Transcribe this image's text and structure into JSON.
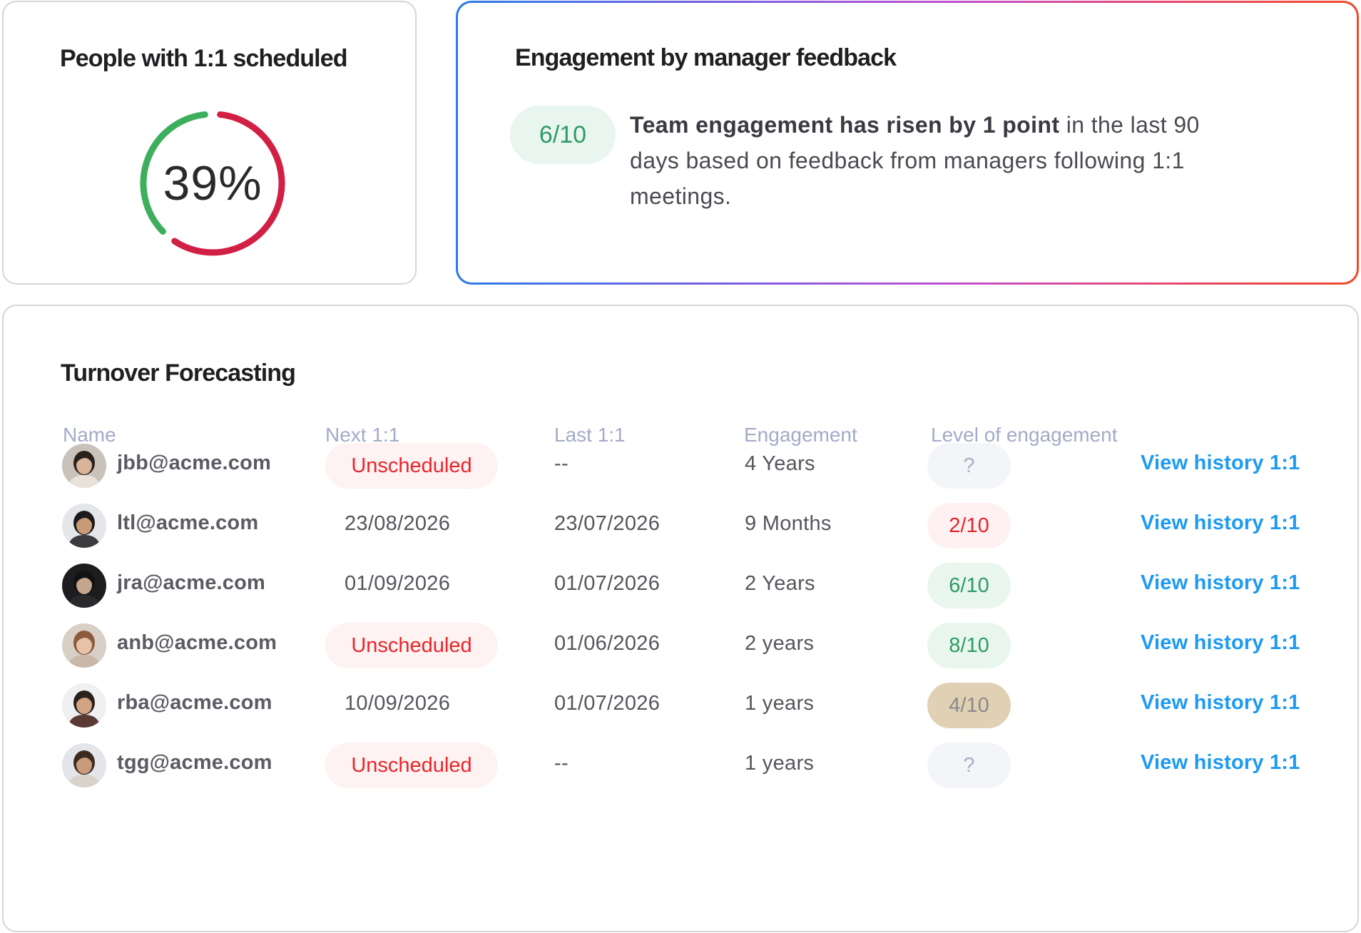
{
  "scheduled": {
    "title": "People with 1:1 scheduled",
    "percent_label": "39%",
    "percent": 39,
    "colors": {
      "scheduled": "#3dae5c",
      "unscheduled": "#d21f44"
    }
  },
  "engagement": {
    "title": "Engagement by manager feedback",
    "score": "6/10",
    "text_bold": "Team engagement has risen by 1 point",
    "text_rest": " in the last 90 days based on feedback from managers following 1:1 meetings."
  },
  "turnover": {
    "title": "Turnover Forecasting",
    "columns": {
      "name": "Name",
      "next": "Next 1:1",
      "last": "Last 1:1",
      "engagement": "Engagement",
      "level": "Level of engagement"
    },
    "rows": [
      {
        "email": "jbb@acme.com",
        "next": "Unscheduled",
        "next_unscheduled": true,
        "last": "--",
        "engagement": "4 Years",
        "level": "?",
        "level_status": "unknown",
        "link": "View history 1:1"
      },
      {
        "email": "ltl@acme.com",
        "next": "23/08/2026",
        "next_unscheduled": false,
        "last": "23/07/2026",
        "engagement": "9 Months",
        "level": "2/10",
        "level_status": "low",
        "link": "View history 1:1"
      },
      {
        "email": "jra@acme.com",
        "next": "01/09/2026",
        "next_unscheduled": false,
        "last": "01/07/2026",
        "engagement": "2 Years",
        "level": "6/10",
        "level_status": "good",
        "link": "View history 1:1"
      },
      {
        "email": "anb@acme.com",
        "next": "Unscheduled",
        "next_unscheduled": true,
        "last": "01/06/2026",
        "engagement": "2 years",
        "level": "8/10",
        "level_status": "good",
        "link": "View history 1:1"
      },
      {
        "email": "rba@acme.com",
        "next": "10/09/2026",
        "next_unscheduled": false,
        "last": "01/07/2026",
        "engagement": "1 years",
        "level": "4/10",
        "level_status": "medium",
        "link": "View history 1:1"
      },
      {
        "email": "tgg@acme.com",
        "next": "Unscheduled",
        "next_unscheduled": true,
        "last": "--",
        "engagement": "1 years",
        "level": "?",
        "level_status": "unknown",
        "link": "View history 1:1"
      }
    ],
    "level_colors": {
      "unknown": {
        "bg": "#f3f5f9",
        "fg": "#a7b0c4"
      },
      "low": {
        "bg": "#fff1f1",
        "fg": "#e3252b"
      },
      "good": {
        "bg": "#e8f6ee",
        "fg": "#2e9b62"
      },
      "medium": {
        "bg": "#e0d1b4",
        "fg": "#8b8a8a"
      }
    }
  }
}
